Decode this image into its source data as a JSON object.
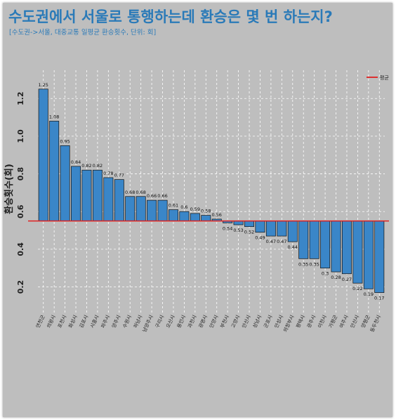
{
  "title": "수도권에서 서울로 통행하는데 환승은 몇 번 하는지?",
  "subtitle": "[수도권->서울, 대중교통 일평균 환승횟수, 단위: 회]",
  "chart_data": {
    "type": "bar",
    "ylabel": "환승횟수(회)",
    "ylim": [
      0.12,
      1.35
    ],
    "yticks": [
      0.2,
      0.4,
      0.6,
      0.8,
      1.0,
      1.2
    ],
    "ytick_labels": [
      "0.2",
      "0.4",
      "0.6",
      "0.8",
      "1.0",
      "1.2"
    ],
    "baseline": 0.55,
    "reference_line": {
      "label": "평균",
      "value": 0.55,
      "color": "#e02020"
    },
    "bar_color": "#3a86c8",
    "categories": [
      "연천군",
      "의왕시",
      "포천시",
      "화성시",
      "김포시",
      "시흥시",
      "파주시",
      "양주시",
      "수원시",
      "하남시",
      "남양주시",
      "구리시",
      "오산시",
      "용인시",
      "과천시",
      "광명시",
      "안양시",
      "부천시",
      "고양시",
      "안산시",
      "성남시",
      "군포시",
      "안성시",
      "의정부시",
      "평택시",
      "광주시",
      "이천시",
      "가평군",
      "여주시",
      "안산시",
      "양평군",
      "동두천시"
    ],
    "values": [
      1.25,
      1.08,
      0.95,
      0.84,
      0.82,
      0.82,
      0.78,
      0.77,
      0.68,
      0.68,
      0.66,
      0.66,
      0.61,
      0.6,
      0.59,
      0.58,
      0.56,
      0.54,
      0.53,
      0.52,
      0.49,
      0.47,
      0.47,
      0.44,
      0.35,
      0.35,
      0.3,
      0.28,
      0.27,
      0.22,
      0.19,
      0.17
    ],
    "value_labels": [
      "1.25",
      "1.08",
      "0.95",
      "0.84",
      "0.82",
      "0.82",
      "0.78",
      "0.77",
      "0.68",
      "0.68",
      "0.66",
      "0.66",
      "0.61",
      "0.6",
      "0.59",
      "0.58",
      "0.56",
      "0.54",
      "0.53",
      "0.52",
      "0.49",
      "0.47",
      "0.47",
      "0.44",
      "0.35",
      "0.35",
      "0.3",
      "0.28",
      "0.27",
      "0.22",
      "0.19",
      "0.17"
    ],
    "grid": true,
    "legend_position": "top-right"
  }
}
